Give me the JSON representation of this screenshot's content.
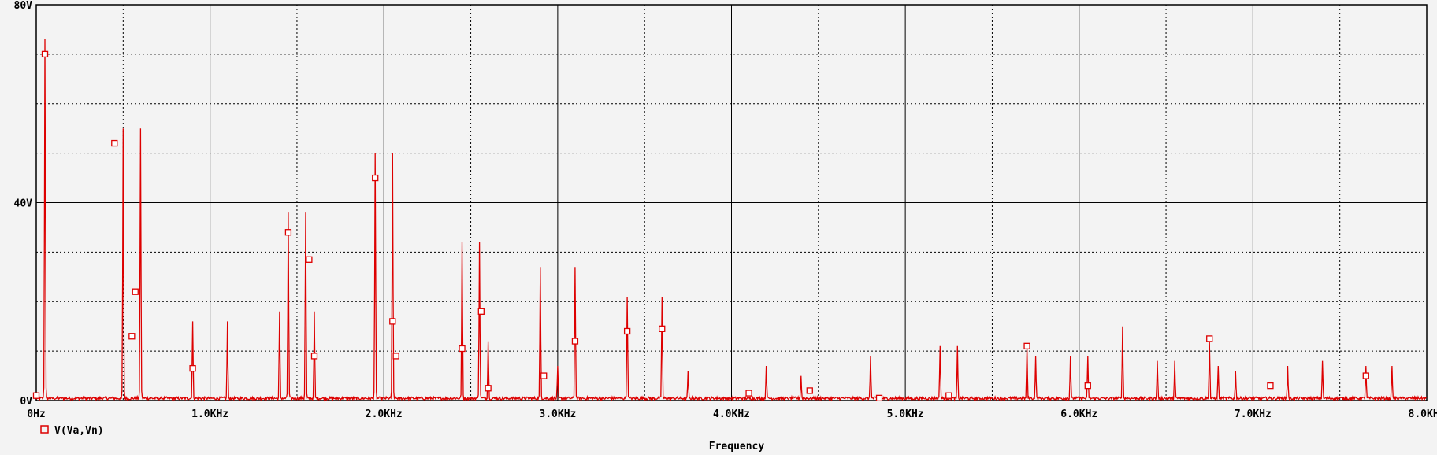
{
  "chart_data": {
    "type": "line",
    "title": "",
    "xlabel": "Frequency",
    "ylabel": "",
    "x_unit": "KHz",
    "y_unit": "V",
    "xlim": [
      0,
      8.0
    ],
    "ylim": [
      0,
      80
    ],
    "x_ticks": [
      0,
      1.0,
      2.0,
      3.0,
      4.0,
      5.0,
      6.0,
      7.0,
      8.0
    ],
    "x_tick_labels": [
      "0Hz",
      "1.0KHz",
      "2.0KHz",
      "3.0KHz",
      "4.0KHz",
      "5.0KHz",
      "6.0KHz",
      "7.0KHz",
      "8.0KHz"
    ],
    "y_ticks": [
      0,
      40,
      80
    ],
    "y_tick_labels": [
      "0V",
      "40V",
      "80V"
    ],
    "grid": true,
    "legend_position": "bottom-left",
    "colors": {
      "background": "#f3f3f3",
      "axis": "#000000",
      "grid": "#000000",
      "series": "#dd0000"
    },
    "series": [
      {
        "name": "V(Va,Vn)",
        "marker": "hollow-square",
        "peaks": [
          [
            0.05,
            73
          ],
          [
            0.5,
            55
          ],
          [
            0.6,
            55
          ],
          [
            0.9,
            16
          ],
          [
            1.1,
            16
          ],
          [
            1.4,
            18
          ],
          [
            1.45,
            38
          ],
          [
            1.55,
            38
          ],
          [
            1.6,
            18
          ],
          [
            1.95,
            50
          ],
          [
            2.05,
            50
          ],
          [
            2.45,
            32
          ],
          [
            2.55,
            32
          ],
          [
            2.6,
            12
          ],
          [
            2.9,
            27
          ],
          [
            3.0,
            7
          ],
          [
            3.1,
            27
          ],
          [
            3.4,
            21
          ],
          [
            3.6,
            21
          ],
          [
            3.75,
            6
          ],
          [
            4.2,
            7
          ],
          [
            4.4,
            5
          ],
          [
            4.8,
            9
          ],
          [
            5.2,
            11
          ],
          [
            5.3,
            11
          ],
          [
            5.7,
            11
          ],
          [
            5.75,
            9
          ],
          [
            5.95,
            9
          ],
          [
            6.05,
            9
          ],
          [
            6.25,
            15
          ],
          [
            6.45,
            8
          ],
          [
            6.55,
            8
          ],
          [
            6.75,
            12
          ],
          [
            6.8,
            7
          ],
          [
            6.9,
            6
          ],
          [
            7.2,
            7
          ],
          [
            7.4,
            8
          ],
          [
            7.65,
            7
          ],
          [
            7.8,
            7
          ]
        ],
        "marker_points": [
          [
            0.0,
            1
          ],
          [
            0.05,
            70
          ],
          [
            0.45,
            52
          ],
          [
            0.55,
            13
          ],
          [
            0.57,
            22
          ],
          [
            0.9,
            6.5
          ],
          [
            1.45,
            34
          ],
          [
            1.57,
            28.5
          ],
          [
            1.6,
            9
          ],
          [
            1.95,
            45
          ],
          [
            2.05,
            16
          ],
          [
            2.07,
            9
          ],
          [
            2.45,
            10.5
          ],
          [
            2.56,
            18
          ],
          [
            2.6,
            2.5
          ],
          [
            2.92,
            5
          ],
          [
            3.1,
            12
          ],
          [
            3.4,
            14
          ],
          [
            3.6,
            14.5
          ],
          [
            4.1,
            1.5
          ],
          [
            4.45,
            2
          ],
          [
            4.85,
            0.5
          ],
          [
            5.25,
            1
          ],
          [
            5.7,
            11
          ],
          [
            6.05,
            3
          ],
          [
            6.75,
            12.5
          ],
          [
            7.1,
            3
          ],
          [
            7.65,
            5
          ]
        ]
      }
    ]
  }
}
